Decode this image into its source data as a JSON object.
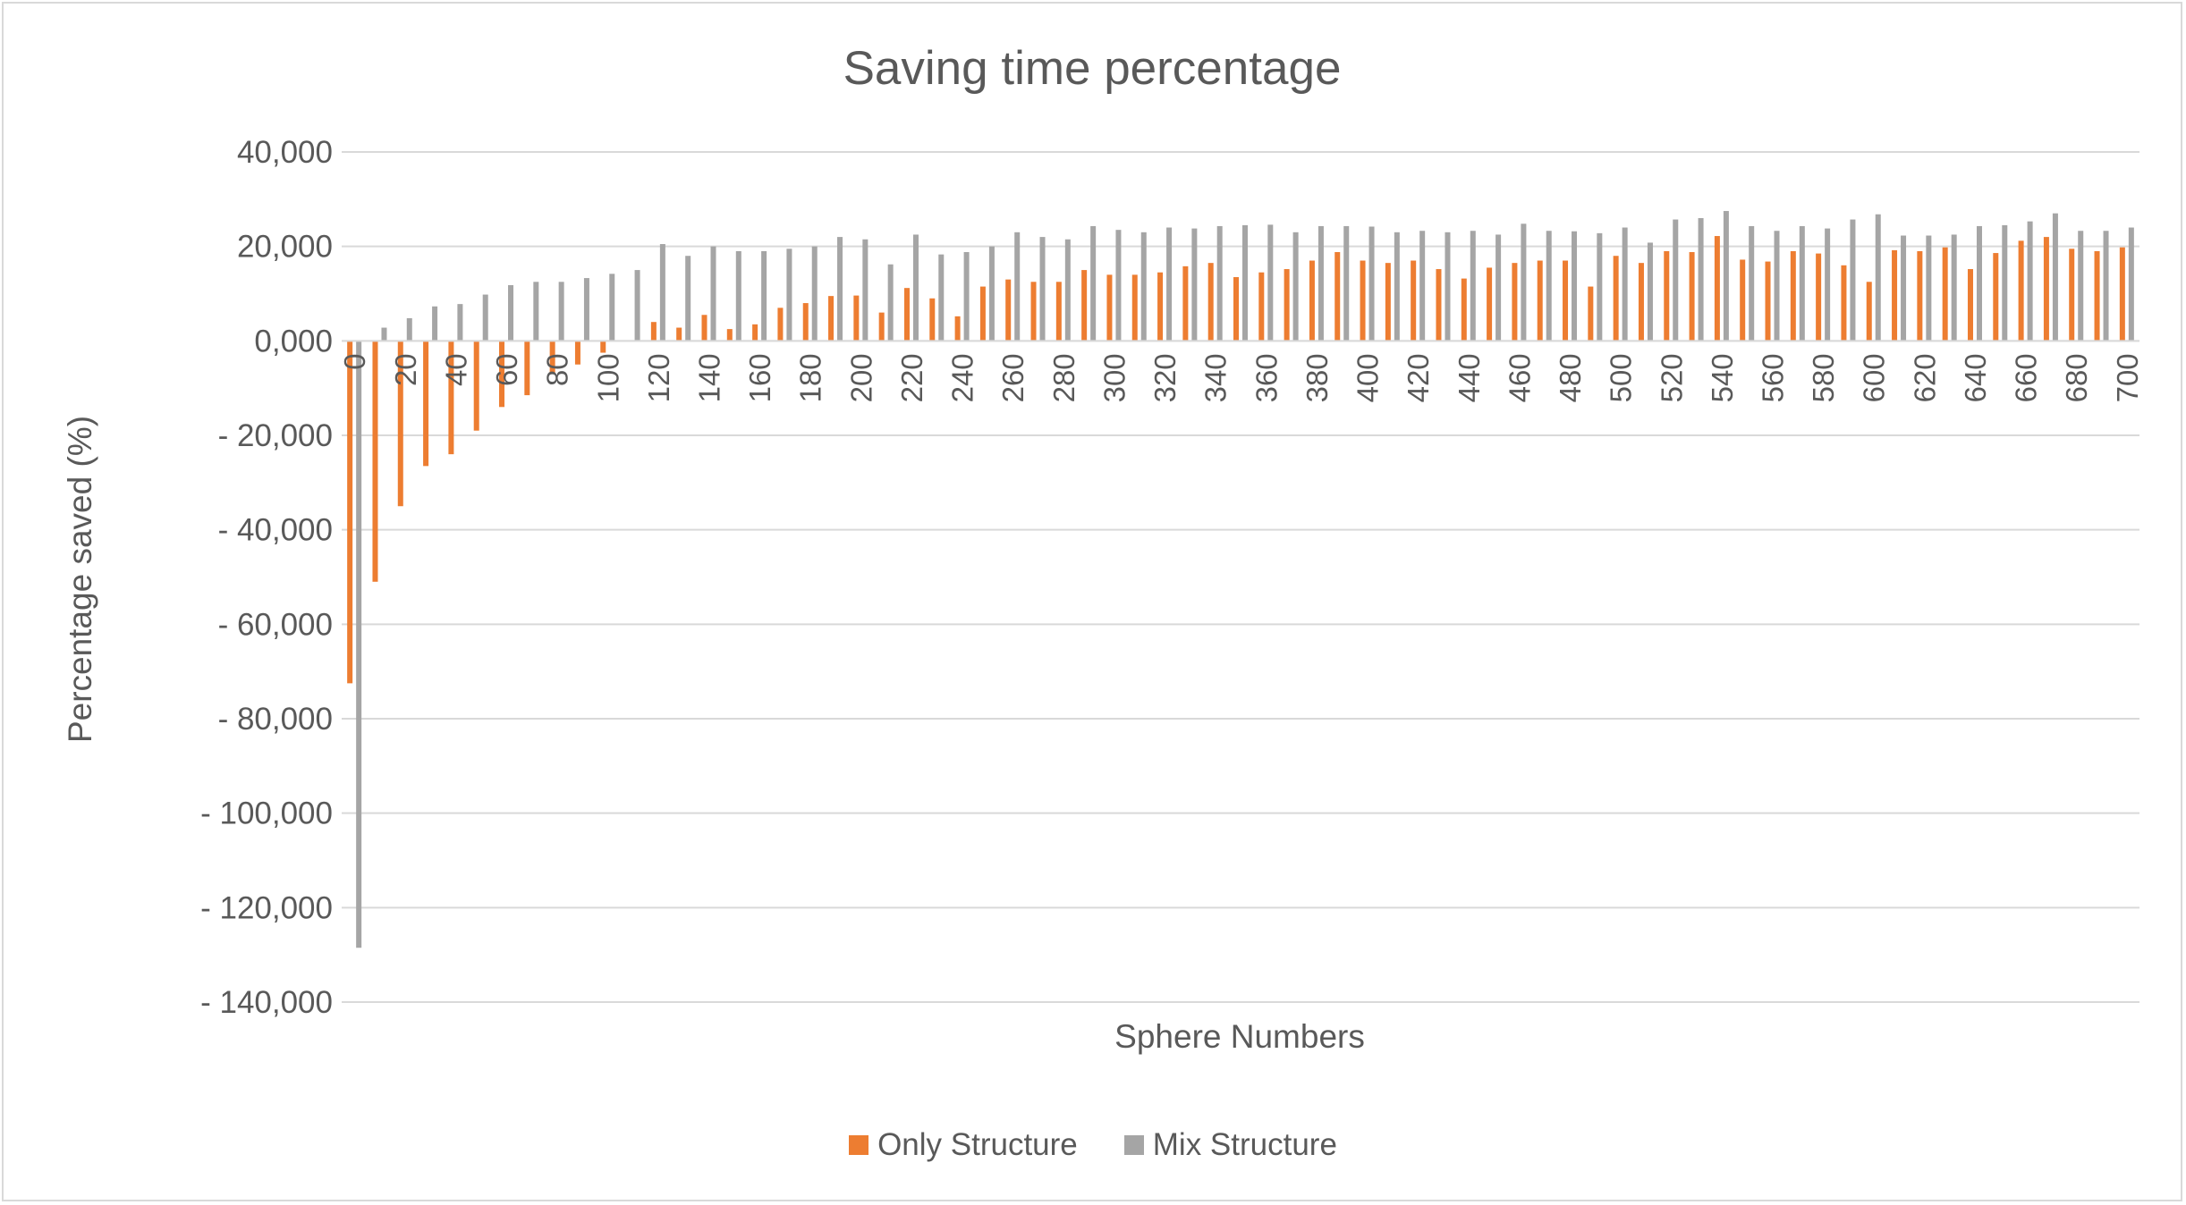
{
  "chart_data": {
    "type": "bar",
    "title": "Saving time percentage",
    "xlabel": "Sphere Numbers",
    "ylabel": "Percentage saved (%)",
    "ylim": [
      -140000,
      40000
    ],
    "yticks": [
      40000,
      20000,
      0,
      -20000,
      -40000,
      -60000,
      -80000,
      -100000,
      -120000,
      -140000
    ],
    "ytick_labels": [
      "40,000",
      "20,000",
      "0,000",
      "- 20,000",
      "- 40,000",
      "- 60,000",
      "- 80,000",
      "- 100,000",
      "- 120,000",
      "- 140,000"
    ],
    "grid": true,
    "legend_position": "bottom",
    "categories": [
      "0",
      "10",
      "20",
      "30",
      "40",
      "50",
      "60",
      "70",
      "80",
      "90",
      "100",
      "110",
      "120",
      "130",
      "140",
      "150",
      "160",
      "170",
      "180",
      "190",
      "200",
      "210",
      "220",
      "230",
      "240",
      "250",
      "260",
      "270",
      "280",
      "290",
      "300",
      "310",
      "320",
      "330",
      "340",
      "350",
      "360",
      "370",
      "380",
      "390",
      "400",
      "410",
      "420",
      "430",
      "440",
      "450",
      "460",
      "470",
      "480",
      "490",
      "500",
      "510",
      "520",
      "530",
      "540",
      "550",
      "560",
      "570",
      "580",
      "590",
      "600",
      "610",
      "620",
      "630",
      "640",
      "650",
      "660",
      "670",
      "680",
      "690",
      "700"
    ],
    "x_tick_labels": [
      "0",
      "20",
      "40",
      "60",
      "80",
      "100",
      "120",
      "140",
      "160",
      "180",
      "200",
      "220",
      "240",
      "260",
      "280",
      "300",
      "320",
      "340",
      "360",
      "380",
      "400",
      "420",
      "440",
      "460",
      "480",
      "500",
      "520",
      "540",
      "560",
      "580",
      "600",
      "620",
      "640",
      "660",
      "680",
      "700"
    ],
    "series": [
      {
        "name": "Only Structure",
        "color": "#ed7d31",
        "values": [
          -72500,
          -51000,
          -35000,
          -26500,
          -24000,
          -19000,
          -14000,
          -11500,
          -7000,
          -5000,
          -2500,
          0,
          4000,
          2800,
          5500,
          2500,
          3500,
          7000,
          8000,
          9500,
          9600,
          6000,
          11200,
          9000,
          5200,
          11500,
          13000,
          12500,
          12500,
          15000,
          14000,
          14000,
          14500,
          15800,
          16500,
          13500,
          14500,
          15200,
          17000,
          18800,
          17000,
          16500,
          17000,
          15200,
          13200,
          15500,
          16500,
          17000,
          17000,
          11500,
          18000,
          16500,
          19000,
          18800,
          22200,
          17200,
          16800,
          19000,
          18500,
          16000,
          12500,
          19200,
          19000,
          19800,
          15200,
          18600,
          21200,
          22000,
          19500,
          19000,
          19800
        ]
      },
      {
        "name": "Mix Structure",
        "color": "#a5a5a5",
        "values": [
          -128500,
          2800,
          4800,
          7300,
          7800,
          9800,
          11800,
          12500,
          12500,
          13300,
          14200,
          15000,
          20500,
          18000,
          20000,
          19000,
          19000,
          19500,
          20000,
          22000,
          21500,
          16200,
          22500,
          18300,
          18800,
          20000,
          23000,
          22000,
          21500,
          24300,
          23500,
          23000,
          24000,
          23800,
          24300,
          24500,
          24600,
          23000,
          24300,
          24300,
          24200,
          23000,
          23300,
          23000,
          23300,
          22500,
          24800,
          23300,
          23200,
          22800,
          24000,
          20800,
          25700,
          26000,
          27500,
          24300,
          23300,
          24300,
          23800,
          25700,
          26800,
          22300,
          22300,
          22500,
          24300,
          24500,
          25300,
          27000,
          23300,
          23300,
          24000
        ]
      }
    ]
  }
}
